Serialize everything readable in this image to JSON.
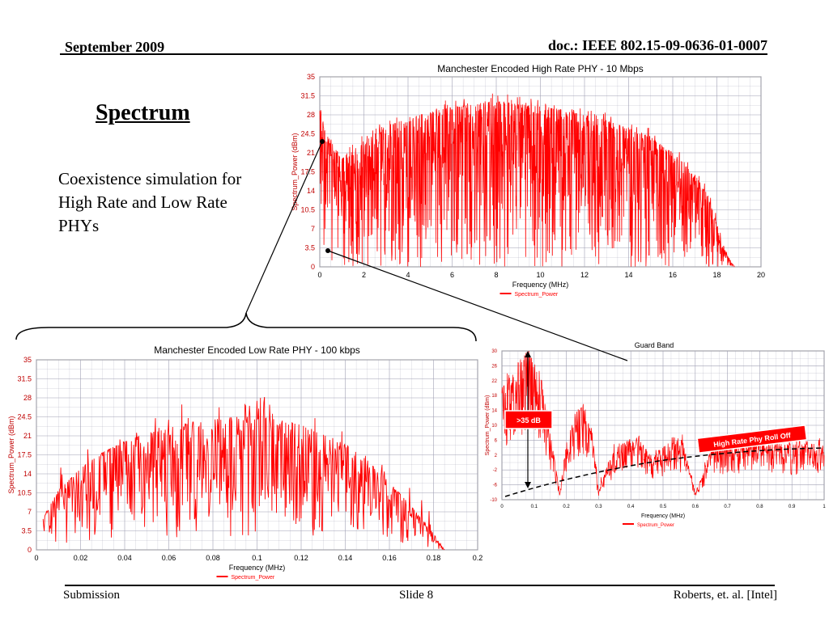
{
  "header": {
    "date": "September 2009",
    "doc_id": "doc.: IEEE 802.15-09-0636-01-0007"
  },
  "slide": {
    "title": "Spectrum",
    "description": "Coexistence simulation for High Rate and Low Rate PHYs"
  },
  "footer": {
    "submission": "Submission",
    "slide_number": "Slide 8",
    "authors": "Roberts, et. al. [Intel]"
  },
  "annotations": {
    "guard_band": "Guard Band",
    "db_label": ">35 dB",
    "rolloff_label": "High Rate Phy Roll Off"
  },
  "colors": {
    "series": "#ff0000",
    "grid": "#a0a0b4",
    "plot_bg": "#ffffff"
  },
  "chart_data": [
    {
      "id": "high_rate",
      "type": "line",
      "title": "Manchester Encoded High Rate PHY - 10 Mbps",
      "xlabel": "Frequency (MHz)",
      "ylabel": "Spectrum_Power (dBm)",
      "xlim": [
        0,
        20
      ],
      "ylim": [
        0,
        35
      ],
      "xticks": [
        "0",
        "2",
        "4",
        "6",
        "8",
        "10",
        "12",
        "14",
        "16",
        "18",
        "20"
      ],
      "yticks": [
        "0",
        "3.5",
        "7",
        "10.5",
        "14",
        "17.5",
        "21",
        "24.5",
        "28",
        "31.5",
        "35"
      ],
      "grid": true,
      "legend": "bottom",
      "series": [
        {
          "name": "Spectrum_Power",
          "x": [
            0,
            0.2,
            1,
            2,
            3,
            4,
            5,
            6,
            7,
            8,
            9,
            10,
            11,
            12,
            13,
            14,
            15,
            16,
            17,
            17.5,
            18,
            18.2,
            18.5,
            18.8
          ],
          "y": [
            30,
            25,
            20,
            23,
            26,
            27.5,
            28.5,
            29.5,
            30,
            30.5,
            30,
            29.5,
            29,
            28,
            27,
            25.5,
            24,
            21,
            17,
            14,
            8,
            5,
            2,
            0
          ]
        }
      ]
    },
    {
      "id": "low_rate",
      "type": "line",
      "title": "Manchester Encoded Low Rate PHY - 100 kbps",
      "xlabel": "Frequency (MHz)",
      "ylabel": "Spectrum_Power (dBm)",
      "xlim": [
        0,
        0.2
      ],
      "ylim": [
        0,
        35
      ],
      "xticks": [
        "0",
        "0.02",
        "0.04",
        "0.06",
        "0.08",
        "0.1",
        "0.12",
        "0.14",
        "0.16",
        "0.18",
        "0.2"
      ],
      "yticks": [
        "0",
        "3.5",
        "7",
        "10.5",
        "14",
        "17.5",
        "21",
        "24.5",
        "28",
        "31.5",
        "35"
      ],
      "grid": true,
      "legend": "bottom",
      "series": [
        {
          "name": "Spectrum_Power",
          "x": [
            0.003,
            0.01,
            0.02,
            0.03,
            0.04,
            0.05,
            0.06,
            0.07,
            0.08,
            0.09,
            0.1,
            0.11,
            0.12,
            0.13,
            0.14,
            0.15,
            0.16,
            0.17,
            0.18,
            0.185
          ],
          "y": [
            6,
            11,
            15,
            18,
            20,
            21.5,
            22.5,
            23.5,
            24,
            24.5,
            24.5,
            24,
            23,
            21.5,
            19.5,
            16.5,
            12.5,
            8,
            3,
            0
          ]
        }
      ]
    },
    {
      "id": "guard_band",
      "type": "line",
      "title": "",
      "xlabel": "Frequency (MHz)",
      "ylabel": "Spectrum_Power (dBm)",
      "xlim": [
        0,
        1
      ],
      "ylim": [
        -10,
        30
      ],
      "xticks": [
        "0",
        "0.1",
        "0.2",
        "0.3",
        "0.4",
        "0.5",
        "0.6",
        "0.7",
        "0.8",
        "0.9",
        "1"
      ],
      "yticks": [
        "-10",
        "-6",
        "-2",
        "2",
        "6",
        "10",
        "14",
        "18",
        "22",
        "26",
        "30"
      ],
      "grid": true,
      "legend": "bottom",
      "series": [
        {
          "name": "Spectrum_Power",
          "x": [
            0,
            0.05,
            0.08,
            0.12,
            0.15,
            0.18,
            0.2,
            0.23,
            0.25,
            0.28,
            0.3,
            0.33,
            0.36,
            0.4,
            0.43,
            0.46,
            0.5,
            0.53,
            0.56,
            0.6,
            0.62,
            0.65,
            0.7,
            0.8,
            0.9,
            1
          ],
          "y": [
            20,
            27,
            30,
            24,
            8,
            -8,
            6,
            14,
            15,
            8,
            -8,
            0,
            5,
            6,
            6,
            2,
            4,
            7,
            6,
            -8,
            -4,
            4,
            5,
            5,
            5,
            5
          ]
        }
      ]
    }
  ]
}
